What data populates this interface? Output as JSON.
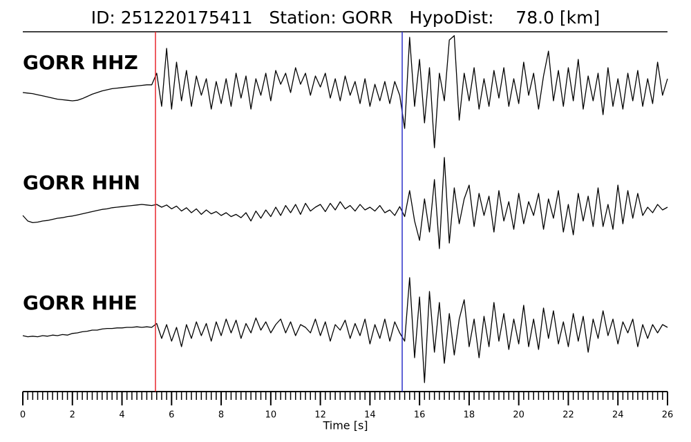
{
  "chart_data": {
    "type": "seismogram",
    "title": "ID: 251220175411   Station: GORR   HypoDist:    78.0 [km]",
    "x_label": "Time [s]",
    "xlim": [
      0,
      26
    ],
    "xticks": [
      0,
      2,
      4,
      6,
      8,
      10,
      12,
      14,
      16,
      18,
      20,
      22,
      24,
      26
    ],
    "xminorticks": [
      0,
      0.2,
      0.4,
      0.6,
      0.8,
      1,
      1.2,
      1.4,
      1.6,
      1.8,
      2,
      2.2,
      2.4,
      2.6,
      2.8,
      3,
      3.2,
      3.4,
      3.6,
      3.8,
      4,
      4.2,
      4.4,
      4.6,
      4.8,
      5,
      5.2,
      5.4,
      5.6,
      5.8,
      6,
      6.2,
      6.4,
      6.6,
      6.8,
      7,
      7.2,
      7.4,
      7.6,
      7.8,
      8,
      8.2,
      8.4,
      8.6,
      8.8,
      9,
      9.2,
      9.4,
      9.6,
      9.8,
      10,
      10.2,
      10.4,
      10.6,
      10.8,
      11,
      11.2,
      11.4,
      11.6,
      11.8,
      12,
      12.2,
      12.4,
      12.6,
      12.8,
      13,
      13.2,
      13.4,
      13.6,
      13.8,
      14,
      14.2,
      14.4,
      14.6,
      14.8,
      15,
      15.2,
      15.4,
      15.6,
      15.8,
      16,
      16.2,
      16.4,
      16.6,
      16.8,
      17,
      17.2,
      17.4,
      17.6,
      17.8,
      18,
      18.2,
      18.4,
      18.6,
      18.8,
      19,
      19.2,
      19.4,
      19.6,
      19.8,
      20,
      20.2,
      20.4,
      20.6,
      20.8,
      21,
      21.2,
      21.4,
      21.6,
      21.8,
      22,
      22.2,
      22.4,
      22.6,
      22.8,
      23,
      23.2,
      23.4,
      23.6,
      23.8,
      24,
      24.2,
      24.4,
      24.6,
      24.8,
      25,
      25.2,
      25.4,
      25.6,
      25.8,
      26
    ],
    "x": [
      0,
      0.2,
      0.4,
      0.6,
      0.8,
      1,
      1.2,
      1.4,
      1.6,
      1.8,
      2,
      2.2,
      2.4,
      2.6,
      2.8,
      3,
      3.2,
      3.4,
      3.6,
      3.8,
      4,
      4.2,
      4.4,
      4.6,
      4.8,
      5,
      5.2,
      5.4,
      5.6,
      5.8,
      6,
      6.2,
      6.4,
      6.6,
      6.8,
      7,
      7.2,
      7.4,
      7.6,
      7.8,
      8,
      8.2,
      8.4,
      8.6,
      8.8,
      9,
      9.2,
      9.4,
      9.6,
      9.8,
      10,
      10.2,
      10.4,
      10.6,
      10.8,
      11,
      11.2,
      11.4,
      11.6,
      11.8,
      12,
      12.2,
      12.4,
      12.6,
      12.8,
      13,
      13.2,
      13.4,
      13.6,
      13.8,
      14,
      14.2,
      14.4,
      14.6,
      14.8,
      15,
      15.2,
      15.4,
      15.6,
      15.8,
      16,
      16.2,
      16.4,
      16.6,
      16.8,
      17,
      17.2,
      17.4,
      17.6,
      17.8,
      18,
      18.2,
      18.4,
      18.6,
      18.8,
      19,
      19.2,
      19.4,
      19.6,
      19.8,
      20,
      20.2,
      20.4,
      20.6,
      20.8,
      21,
      21.2,
      21.4,
      21.6,
      21.8,
      22,
      22.2,
      22.4,
      22.6,
      22.8,
      23,
      23.2,
      23.4,
      23.6,
      23.8,
      24,
      24.2,
      24.4,
      24.6,
      24.8,
      25,
      25.2,
      25.4,
      25.6,
      25.8,
      26
    ],
    "ylim": [
      -1,
      1
    ],
    "label_color": "#4a9a0a",
    "picks": [
      {
        "x": 5.35,
        "color": "#e8262b"
      },
      {
        "x": 15.3,
        "color": "#2b2fc8"
      }
    ],
    "series": [
      {
        "name": "GORR HHZ",
        "color": "#000000",
        "values": [
          -0.05,
          -0.06,
          -0.07,
          -0.09,
          -0.11,
          -0.13,
          -0.15,
          -0.17,
          -0.18,
          -0.19,
          -0.2,
          -0.19,
          -0.16,
          -0.12,
          -0.08,
          -0.05,
          -0.02,
          0,
          0.02,
          0.03,
          0.04,
          0.05,
          0.06,
          0.07,
          0.08,
          0.09,
          0.09,
          0.3,
          -0.3,
          0.75,
          -0.35,
          0.5,
          -0.2,
          0.35,
          -0.3,
          0.25,
          -0.1,
          0.2,
          -0.35,
          0.15,
          -0.25,
          0.2,
          -0.3,
          0.3,
          -0.15,
          0.25,
          -0.35,
          0.2,
          -0.1,
          0.3,
          -0.2,
          0.35,
          0.1,
          0.3,
          -0.05,
          0.4,
          0.1,
          0.3,
          -0.1,
          0.25,
          0.05,
          0.3,
          -0.15,
          0.2,
          -0.2,
          0.25,
          -0.1,
          0.15,
          -0.25,
          0.2,
          -0.3,
          0.1,
          -0.2,
          0.15,
          -0.25,
          0.15,
          -0.1,
          -0.7,
          0.95,
          -0.3,
          0.55,
          -0.6,
          0.4,
          -1.05,
          0.3,
          -0.2,
          0.9,
          0.98,
          -0.55,
          0.3,
          -0.2,
          0.4,
          -0.35,
          0.2,
          -0.3,
          0.35,
          -0.15,
          0.4,
          -0.3,
          0.2,
          -0.25,
          0.5,
          -0.1,
          0.3,
          -0.35,
          0.25,
          0.7,
          -0.2,
          0.35,
          -0.3,
          0.4,
          -0.2,
          0.55,
          -0.35,
          0.25,
          -0.2,
          0.3,
          -0.45,
          0.4,
          -0.3,
          0.2,
          -0.35,
          0.3,
          -0.2,
          0.35,
          -0.3,
          0.2,
          -0.25,
          0.5,
          -0.1,
          0.2
        ]
      },
      {
        "name": "GORR HHN",
        "color": "#000000",
        "values": [
          -0.1,
          -0.2,
          -0.23,
          -0.22,
          -0.2,
          -0.19,
          -0.17,
          -0.15,
          -0.14,
          -0.12,
          -0.11,
          -0.09,
          -0.07,
          -0.05,
          -0.03,
          -0.01,
          0.01,
          0.02,
          0.04,
          0.05,
          0.06,
          0.07,
          0.08,
          0.09,
          0.1,
          0.09,
          0.08,
          0.1,
          0.05,
          0.09,
          0.02,
          0.07,
          -0.02,
          0.04,
          -0.05,
          0.02,
          -0.08,
          0,
          -0.07,
          -0.03,
          -0.1,
          -0.05,
          -0.12,
          -0.08,
          -0.14,
          -0.05,
          -0.2,
          -0.02,
          -0.15,
          0,
          -0.12,
          0.05,
          -0.1,
          0.08,
          -0.05,
          0.1,
          -0.08,
          0.12,
          -0.02,
          0.05,
          0.1,
          -0.03,
          0.12,
          0,
          0.15,
          0.02,
          0.08,
          -0.02,
          0.1,
          0,
          0.05,
          -0.02,
          0.08,
          -0.05,
          0,
          -0.1,
          0.06,
          -0.12,
          0.35,
          -0.2,
          -0.55,
          0.2,
          -0.4,
          0.55,
          -0.7,
          0.95,
          -0.6,
          0.4,
          -0.25,
          0.2,
          0.45,
          -0.3,
          0.3,
          -0.1,
          0.25,
          -0.4,
          0.35,
          -0.2,
          0.15,
          -0.35,
          0.3,
          -0.25,
          0.15,
          -0.1,
          0.3,
          -0.35,
          0.2,
          -0.15,
          0.35,
          -0.4,
          0.1,
          -0.45,
          0.3,
          -0.2,
          0.25,
          -0.3,
          0.4,
          -0.3,
          0.1,
          -0.35,
          0.45,
          -0.25,
          0.35,
          -0.15,
          0.3,
          -0.1,
          0.05,
          -0.05,
          0.1,
          0,
          0.05
        ]
      },
      {
        "name": "GORR HHE",
        "color": "#000000",
        "values": [
          -0.1,
          -0.12,
          -0.11,
          -0.12,
          -0.1,
          -0.11,
          -0.09,
          -0.1,
          -0.08,
          -0.09,
          -0.06,
          -0.05,
          -0.03,
          -0.02,
          0,
          0,
          0.02,
          0.03,
          0.03,
          0.04,
          0.04,
          0.05,
          0.05,
          0.06,
          0.05,
          0.06,
          0.05,
          0.12,
          -0.15,
          0.1,
          -0.2,
          0.05,
          -0.3,
          0.1,
          -0.15,
          0.15,
          -0.1,
          0.12,
          -0.2,
          0.15,
          -0.1,
          0.2,
          -0.05,
          0.18,
          -0.15,
          0.12,
          -0.05,
          0.22,
          0,
          0.15,
          -0.05,
          0.1,
          0.2,
          -0.05,
          0.15,
          -0.1,
          0.1,
          0.05,
          -0.05,
          0.2,
          -0.1,
          0.15,
          -0.2,
          0.1,
          0,
          0.18,
          -0.15,
          0.12,
          -0.1,
          0.2,
          -0.25,
          0.1,
          -0.15,
          0.2,
          -0.2,
          0.15,
          -0.05,
          -0.2,
          0.95,
          -0.5,
          0.6,
          -0.95,
          0.7,
          -0.4,
          0.5,
          -0.6,
          0.3,
          -0.45,
          0.2,
          0.55,
          -0.3,
          0.2,
          -0.5,
          0.25,
          -0.3,
          0.5,
          -0.2,
          0.3,
          -0.35,
          0.2,
          -0.25,
          0.45,
          -0.3,
          0.2,
          -0.35,
          0.4,
          -0.15,
          0.35,
          -0.25,
          0.15,
          -0.3,
          0.3,
          -0.2,
          0.25,
          -0.4,
          0.2,
          -0.15,
          0.35,
          -0.1,
          0.2,
          -0.25,
          0.15,
          -0.05,
          0.2,
          -0.3,
          0.1,
          -0.15,
          0.1,
          -0.05,
          0.1,
          0.05
        ]
      }
    ]
  }
}
